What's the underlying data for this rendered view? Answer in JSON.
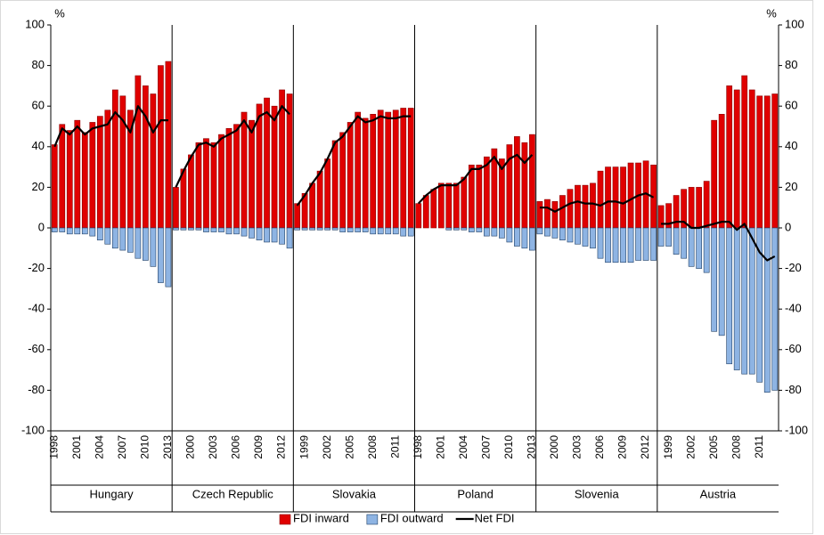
{
  "chart_data": {
    "type": "bar",
    "y_unit": "%",
    "ylim": [
      -100,
      100
    ],
    "yticks": [
      -100,
      -80,
      -60,
      -40,
      -20,
      0,
      20,
      40,
      60,
      80,
      100
    ],
    "grid": false,
    "legend": "bottom",
    "groups": [
      {
        "name": "Hungary",
        "categories": [
          "1998",
          null,
          null,
          "2001",
          null,
          null,
          "2004",
          null,
          null,
          "2007",
          null,
          null,
          "2010",
          null,
          null,
          "2013"
        ]
      },
      {
        "name": "Czech Republic",
        "categories": [
          null,
          null,
          "2000",
          null,
          null,
          "2003",
          null,
          null,
          "2006",
          null,
          null,
          "2009",
          null,
          null,
          "2012",
          null
        ]
      },
      {
        "name": "Slovakia",
        "categories": [
          null,
          "1999",
          null,
          null,
          "2002",
          null,
          null,
          "2005",
          null,
          null,
          "2008",
          null,
          null,
          "2011",
          null,
          null
        ]
      },
      {
        "name": "Poland",
        "categories": [
          "1998",
          null,
          null,
          "2001",
          null,
          null,
          "2004",
          null,
          null,
          "2007",
          null,
          null,
          "2010",
          null,
          null,
          "2013"
        ]
      },
      {
        "name": "Slovenia",
        "categories": [
          null,
          null,
          "2000",
          null,
          null,
          "2003",
          null,
          null,
          "2006",
          null,
          null,
          "2009",
          null,
          null,
          "2012",
          null
        ]
      },
      {
        "name": "Austria",
        "categories": [
          null,
          "1999",
          null,
          null,
          "2002",
          null,
          null,
          "2005",
          null,
          null,
          "2008",
          null,
          null,
          "2011",
          null,
          null
        ]
      }
    ],
    "series": [
      {
        "name": "FDI inward",
        "type": "bar",
        "color": "#e00000",
        "values": [
          41,
          51,
          48,
          53,
          47,
          52,
          55,
          58,
          68,
          65,
          58,
          75,
          70,
          66,
          80,
          82,
          20,
          29,
          36,
          42,
          44,
          42,
          46,
          49,
          51,
          57,
          53,
          61,
          64,
          60,
          68,
          66,
          12,
          17,
          22,
          28,
          34,
          43,
          47,
          52,
          57,
          54,
          56,
          58,
          57,
          58,
          59,
          59,
          12,
          16,
          19,
          22,
          22,
          22,
          25,
          31,
          31,
          35,
          39,
          34,
          41,
          45,
          42,
          46,
          13,
          14,
          13,
          16,
          19,
          21,
          21,
          22,
          28,
          30,
          30,
          30,
          32,
          32,
          33,
          31,
          11,
          12,
          16,
          19,
          20,
          20,
          23,
          53,
          56,
          70,
          68,
          75,
          68,
          65,
          65,
          66
        ]
      },
      {
        "name": "FDI outward",
        "type": "bar",
        "color": "#8eb4e3",
        "values": [
          -2,
          -2,
          -3,
          -3,
          -3,
          -4,
          -6,
          -8,
          -10,
          -11,
          -12,
          -15,
          -16,
          -19,
          -27,
          -29,
          -1,
          -1,
          -1,
          -1,
          -2,
          -2,
          -2,
          -3,
          -3,
          -4,
          -5,
          -6,
          -7,
          -7,
          -8,
          -10,
          -1,
          -1,
          -1,
          -1,
          -1,
          -1,
          -2,
          -2,
          -2,
          -2,
          -3,
          -3,
          -3,
          -3,
          -4,
          -4,
          0,
          0,
          0,
          0,
          -1,
          -1,
          -1,
          -2,
          -2,
          -4,
          -4,
          -5,
          -7,
          -9,
          -10,
          -11,
          -3,
          -4,
          -5,
          -6,
          -7,
          -8,
          -9,
          -10,
          -15,
          -17,
          -17,
          -17,
          -17,
          -16,
          -16,
          -16,
          -9,
          -9,
          -13,
          -15,
          -19,
          -20,
          -22,
          -51,
          -53,
          -67,
          -70,
          -72,
          -72,
          -76,
          -81,
          -80
        ]
      },
      {
        "name": "Net FDI",
        "type": "line",
        "color": "#000000",
        "values": [
          40,
          49,
          46,
          50,
          46,
          49,
          50,
          51,
          57,
          53,
          47,
          60,
          55,
          47,
          53,
          53,
          20,
          28,
          35,
          41,
          42,
          40,
          44,
          46,
          48,
          53,
          47,
          55,
          57,
          53,
          60,
          56,
          11,
          16,
          22,
          27,
          34,
          42,
          45,
          50,
          55,
          52,
          53,
          55,
          54,
          54,
          55,
          55,
          12,
          16,
          19,
          21,
          21,
          21,
          24,
          29,
          29,
          31,
          35,
          29,
          34,
          36,
          32,
          36,
          10,
          10,
          8,
          10,
          12,
          13,
          12,
          12,
          11,
          13,
          13,
          12,
          14,
          16,
          17,
          15,
          2,
          2,
          3,
          3,
          0,
          0,
          1,
          2,
          3,
          3,
          -1,
          2,
          -5,
          -12,
          -16,
          -14
        ]
      }
    ]
  }
}
